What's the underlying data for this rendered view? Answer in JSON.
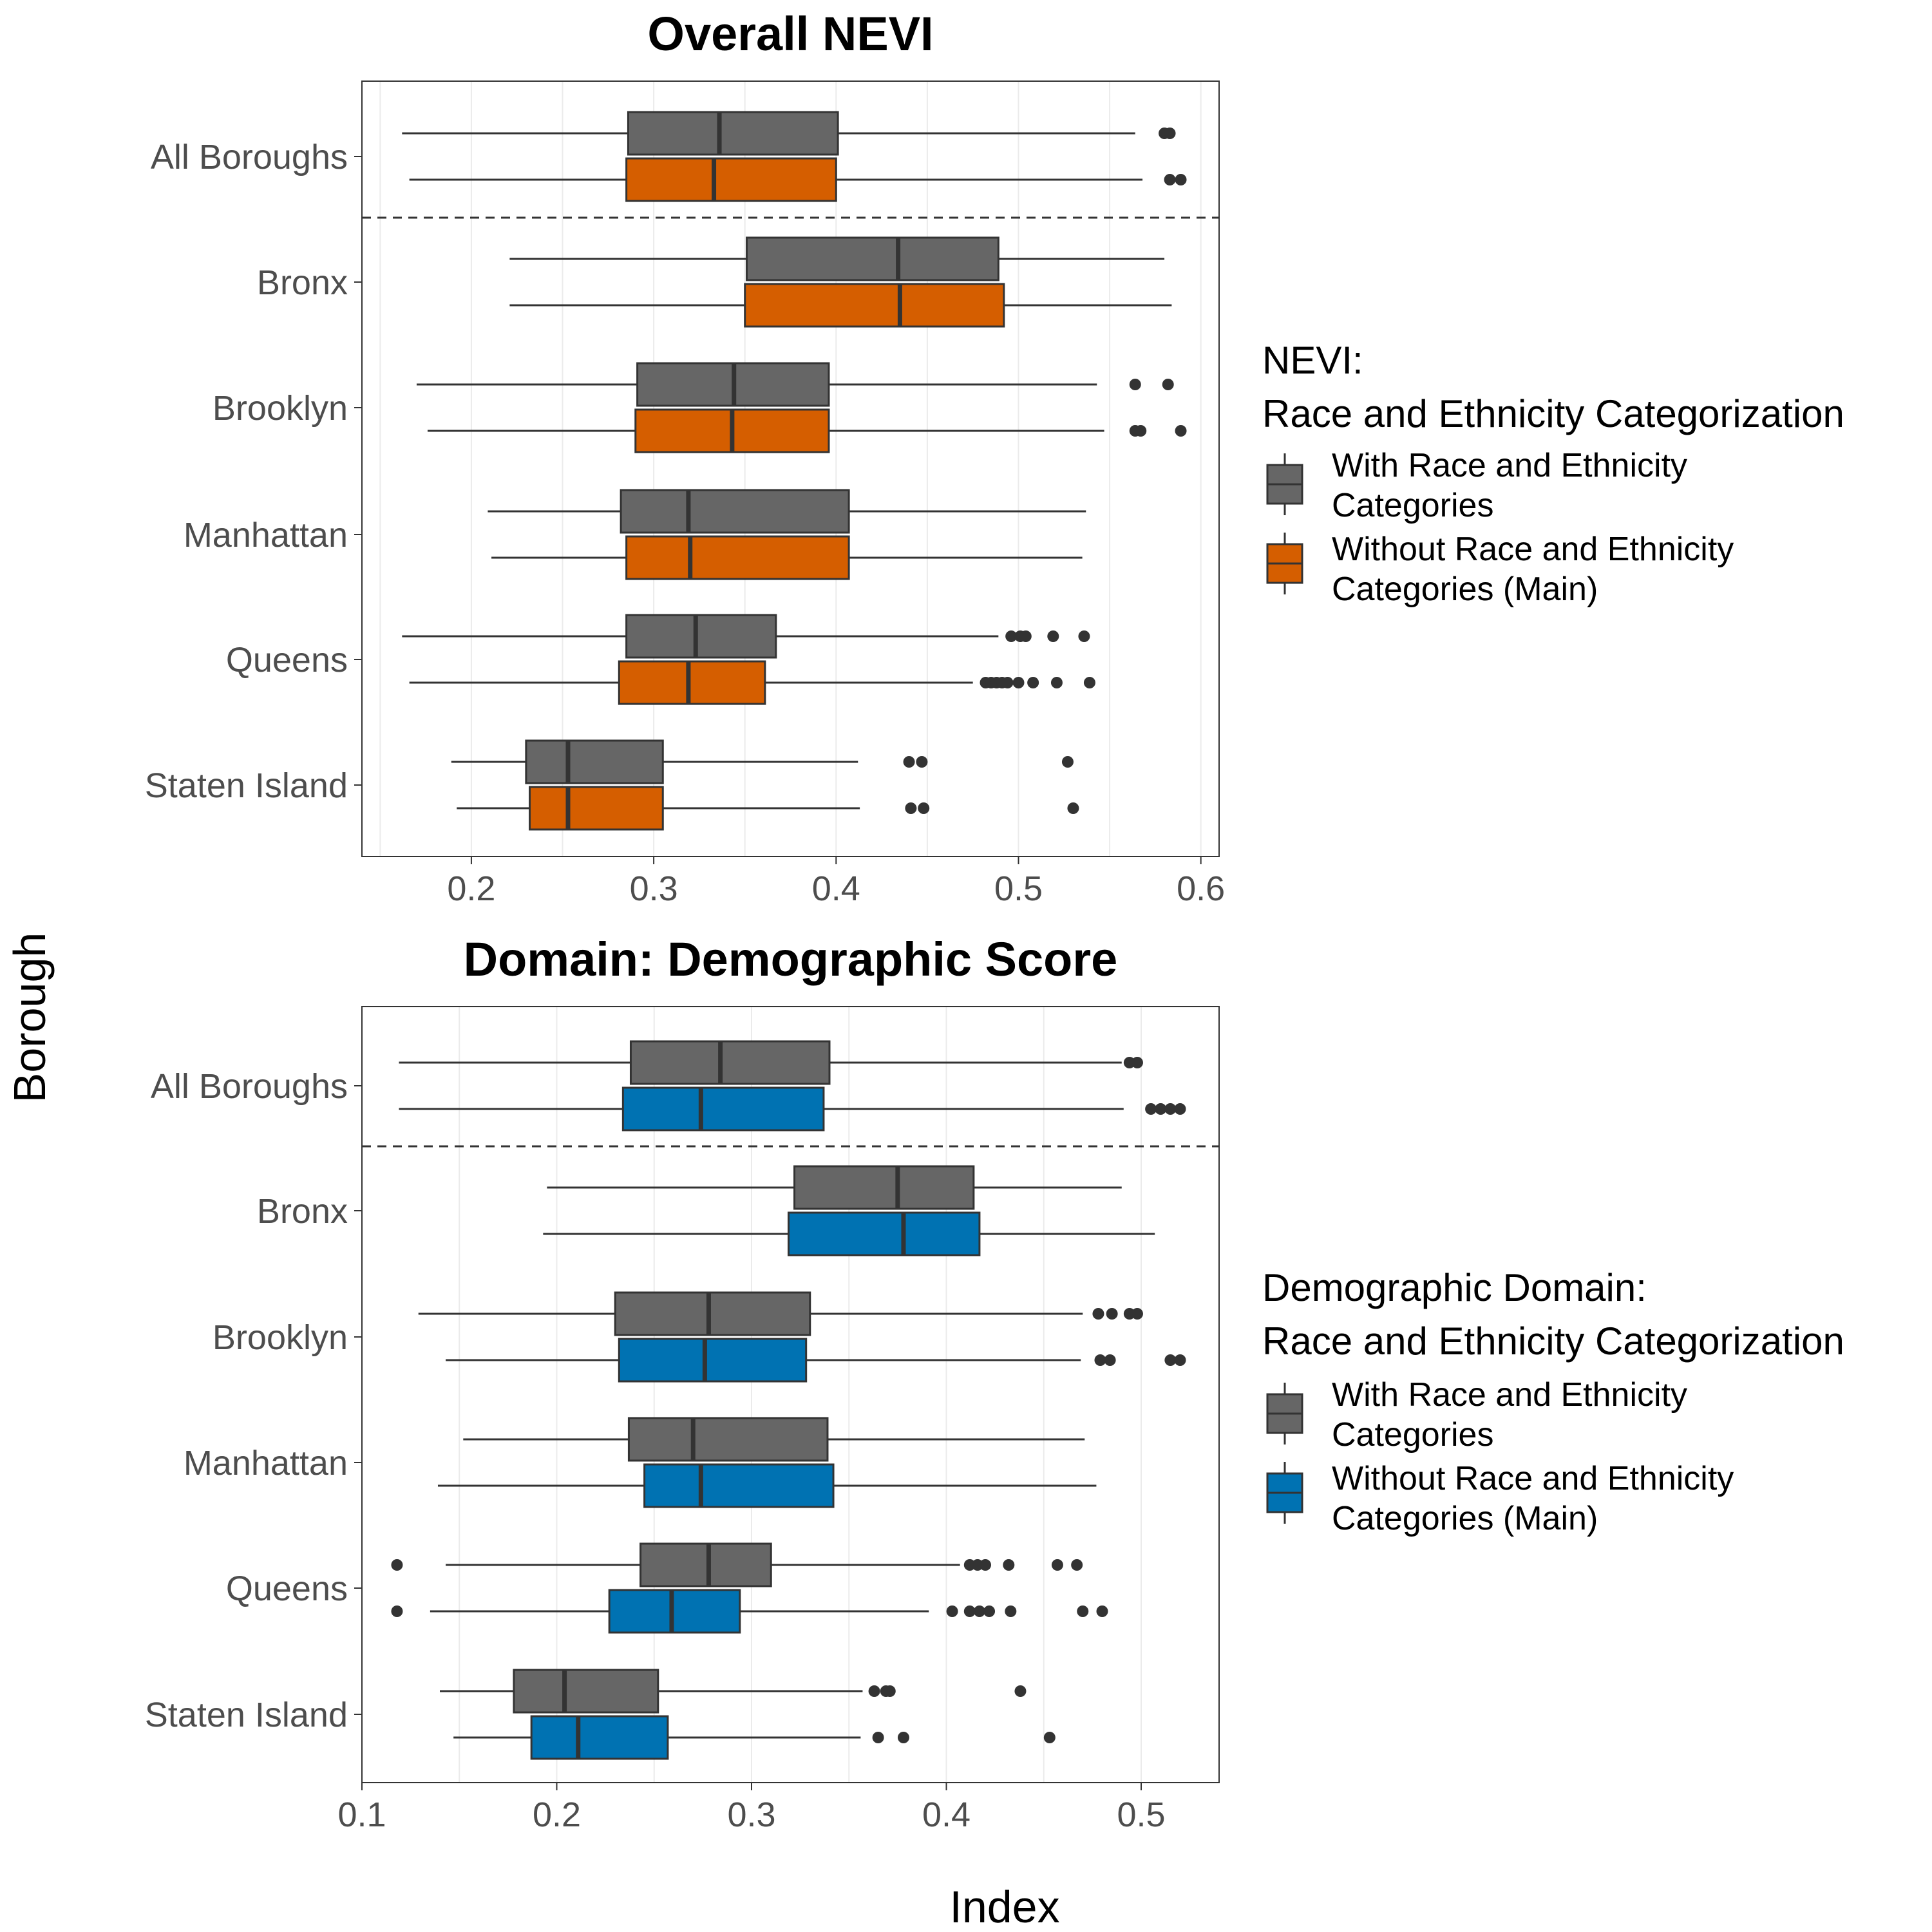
{
  "y_axis_label": "Borough",
  "x_axis_label": "Index",
  "colors": {
    "with_race": "#666666",
    "nevi_without": "#D55E00",
    "demo_without": "#0072B2",
    "outline": "#333333",
    "point": "#333333",
    "grid": "#EBEBEB",
    "text_tick": "#4D4D4D"
  },
  "chart_data": [
    {
      "type": "boxplot",
      "orientation": "horizontal",
      "title": "Overall NEVI",
      "xlabel": "Index",
      "ylabel": "Borough",
      "xlim": [
        0.14,
        0.61
      ],
      "xticks": [
        0.2,
        0.3,
        0.4,
        0.5,
        0.6
      ],
      "xtick_labels": [
        "0.2",
        "0.3",
        "0.4",
        "0.5",
        "0.6"
      ],
      "categories": [
        "All Boroughs",
        "Bronx",
        "Brooklyn",
        "Manhattan",
        "Queens",
        "Staten Island"
      ],
      "grid": true,
      "separator_after": "All Boroughs",
      "legend": {
        "title_line1": "NEVI:",
        "title_line2": "Race and Ethnicity Categorization",
        "position": "right",
        "items": [
          {
            "line1": "With Race and Ethnicity",
            "line2": "Categories"
          },
          {
            "line1": "Without Race and Ethnicity",
            "line2": "Categories (Main)"
          }
        ]
      },
      "series": [
        {
          "name": "With Race and Ethnicity Categories",
          "color": "#666666",
          "boxes": [
            {
              "category": "All Boroughs",
              "whisker_low": 0.162,
              "q1": 0.286,
              "median": 0.336,
              "q3": 0.401,
              "whisker_high": 0.564,
              "outliers": [
                0.58,
                0.583
              ]
            },
            {
              "category": "Bronx",
              "whisker_low": 0.221,
              "q1": 0.351,
              "median": 0.434,
              "q3": 0.489,
              "whisker_high": 0.58,
              "outliers": []
            },
            {
              "category": "Brooklyn",
              "whisker_low": 0.17,
              "q1": 0.291,
              "median": 0.344,
              "q3": 0.396,
              "whisker_high": 0.543,
              "outliers": [
                0.564,
                0.582
              ]
            },
            {
              "category": "Manhattan",
              "whisker_low": 0.209,
              "q1": 0.282,
              "median": 0.319,
              "q3": 0.407,
              "whisker_high": 0.537,
              "outliers": []
            },
            {
              "category": "Queens",
              "whisker_low": 0.162,
              "q1": 0.285,
              "median": 0.323,
              "q3": 0.367,
              "whisker_high": 0.489,
              "outliers": [
                0.496,
                0.501,
                0.504,
                0.519,
                0.536
              ]
            },
            {
              "category": "Staten Island",
              "whisker_low": 0.189,
              "q1": 0.23,
              "median": 0.253,
              "q3": 0.305,
              "whisker_high": 0.412,
              "outliers": [
                0.44,
                0.447,
                0.527
              ]
            }
          ]
        },
        {
          "name": "Without Race and Ethnicity Categories (Main)",
          "color": "#D55E00",
          "boxes": [
            {
              "category": "All Boroughs",
              "whisker_low": 0.166,
              "q1": 0.285,
              "median": 0.333,
              "q3": 0.4,
              "whisker_high": 0.568,
              "outliers": [
                0.583,
                0.589
              ]
            },
            {
              "category": "Bronx",
              "whisker_low": 0.221,
              "q1": 0.35,
              "median": 0.435,
              "q3": 0.492,
              "whisker_high": 0.584,
              "outliers": []
            },
            {
              "category": "Brooklyn",
              "whisker_low": 0.176,
              "q1": 0.29,
              "median": 0.343,
              "q3": 0.396,
              "whisker_high": 0.547,
              "outliers": [
                0.564,
                0.567,
                0.589
              ]
            },
            {
              "category": "Manhattan",
              "whisker_low": 0.211,
              "q1": 0.285,
              "median": 0.32,
              "q3": 0.407,
              "whisker_high": 0.535,
              "outliers": []
            },
            {
              "category": "Queens",
              "whisker_low": 0.166,
              "q1": 0.281,
              "median": 0.319,
              "q3": 0.361,
              "whisker_high": 0.475,
              "outliers": [
                0.482,
                0.485,
                0.488,
                0.491,
                0.494,
                0.5,
                0.508,
                0.521,
                0.539
              ]
            },
            {
              "category": "Staten Island",
              "whisker_low": 0.192,
              "q1": 0.232,
              "median": 0.253,
              "q3": 0.305,
              "whisker_high": 0.413,
              "outliers": [
                0.441,
                0.448,
                0.53
              ]
            }
          ]
        }
      ]
    },
    {
      "type": "boxplot",
      "orientation": "horizontal",
      "title": "Domain: Demographic Score",
      "xlabel": "Index",
      "ylabel": "Borough",
      "xlim": [
        0.1,
        0.54
      ],
      "xticks": [
        0.1,
        0.2,
        0.3,
        0.4,
        0.5
      ],
      "xtick_labels": [
        "0.1",
        "0.2",
        "0.3",
        "0.4",
        "0.5"
      ],
      "categories": [
        "All Boroughs",
        "Bronx",
        "Brooklyn",
        "Manhattan",
        "Queens",
        "Staten Island"
      ],
      "grid": true,
      "separator_after": "All Boroughs",
      "legend": {
        "title_line1": "Demographic Domain:",
        "title_line2": "Race and Ethnicity Categorization",
        "position": "right",
        "items": [
          {
            "line1": "With Race and Ethnicity",
            "line2": "Categories"
          },
          {
            "line1": "Without Race and Ethnicity",
            "line2": "Categories (Main)"
          }
        ]
      },
      "series": [
        {
          "name": "With Race and Ethnicity Categories",
          "color": "#666666",
          "boxes": [
            {
              "category": "All Boroughs",
              "whisker_low": 0.119,
              "q1": 0.238,
              "median": 0.284,
              "q3": 0.34,
              "whisker_high": 0.49,
              "outliers": [
                0.494,
                0.498
              ]
            },
            {
              "category": "Bronx",
              "whisker_low": 0.195,
              "q1": 0.322,
              "median": 0.375,
              "q3": 0.414,
              "whisker_high": 0.49,
              "outliers": []
            },
            {
              "category": "Brooklyn",
              "whisker_low": 0.129,
              "q1": 0.23,
              "median": 0.278,
              "q3": 0.33,
              "whisker_high": 0.47,
              "outliers": [
                0.478,
                0.485,
                0.494,
                0.498
              ]
            },
            {
              "category": "Manhattan",
              "whisker_low": 0.152,
              "q1": 0.237,
              "median": 0.27,
              "q3": 0.339,
              "whisker_high": 0.471,
              "outliers": []
            },
            {
              "category": "Queens",
              "whisker_low": 0.143,
              "q1": 0.243,
              "median": 0.278,
              "q3": 0.31,
              "whisker_high": 0.407,
              "outliers": [
                0.118,
                0.412,
                0.416,
                0.42,
                0.432,
                0.457,
                0.467
              ]
            },
            {
              "category": "Staten Island",
              "whisker_low": 0.14,
              "q1": 0.178,
              "median": 0.204,
              "q3": 0.252,
              "whisker_high": 0.357,
              "outliers": [
                0.363,
                0.369,
                0.371,
                0.438
              ]
            }
          ]
        },
        {
          "name": "Without Race and Ethnicity Categories (Main)",
          "color": "#0072B2",
          "boxes": [
            {
              "category": "All Boroughs",
              "whisker_low": 0.119,
              "q1": 0.234,
              "median": 0.274,
              "q3": 0.337,
              "whisker_high": 0.491,
              "outliers": [
                0.505,
                0.51,
                0.515,
                0.52
              ]
            },
            {
              "category": "Bronx",
              "whisker_low": 0.193,
              "q1": 0.319,
              "median": 0.378,
              "q3": 0.417,
              "whisker_high": 0.507,
              "outliers": []
            },
            {
              "category": "Brooklyn",
              "whisker_low": 0.143,
              "q1": 0.232,
              "median": 0.276,
              "q3": 0.328,
              "whisker_high": 0.469,
              "outliers": [
                0.479,
                0.484,
                0.515,
                0.52
              ]
            },
            {
              "category": "Manhattan",
              "whisker_low": 0.139,
              "q1": 0.245,
              "median": 0.274,
              "q3": 0.342,
              "whisker_high": 0.477,
              "outliers": []
            },
            {
              "category": "Queens",
              "whisker_low": 0.135,
              "q1": 0.227,
              "median": 0.259,
              "q3": 0.294,
              "whisker_high": 0.391,
              "outliers": [
                0.118,
                0.403,
                0.412,
                0.417,
                0.422,
                0.433,
                0.47,
                0.48
              ]
            },
            {
              "category": "Staten Island",
              "whisker_low": 0.147,
              "q1": 0.187,
              "median": 0.211,
              "q3": 0.257,
              "whisker_high": 0.356,
              "outliers": [
                0.365,
                0.378,
                0.453
              ]
            }
          ]
        }
      ]
    }
  ]
}
